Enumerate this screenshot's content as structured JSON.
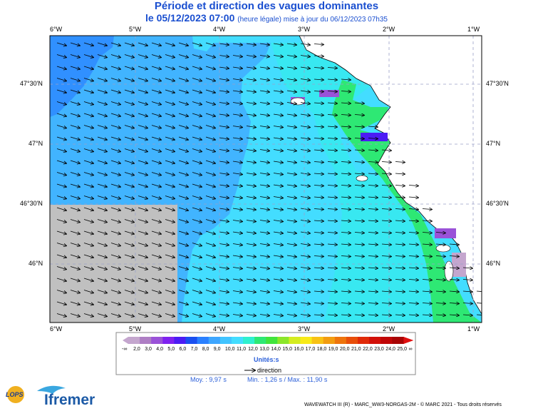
{
  "header": {
    "title": "Période et direction des vagues dominantes",
    "date_main": "le 05/12/2023 07:00",
    "date_sub": "(heure légale) mise à jour du 06/12/2023 07h35"
  },
  "axes": {
    "lon_labels": [
      "6°W",
      "5°W",
      "4°W",
      "3°W",
      "2°W",
      "1°W"
    ],
    "lat_labels": [
      "47°30'N",
      "47°N",
      "46°30'N",
      "46°N"
    ]
  },
  "legend": {
    "ticks": [
      "-∞",
      "2,0",
      "3,0",
      "4,0",
      "5,0",
      "6,0",
      "7,0",
      "8,0",
      "9,0",
      "10,0",
      "11,0",
      "12,0",
      "13,0",
      "14,0",
      "15,0",
      "16,0",
      "17,0",
      "18,0",
      "19,0",
      "20,0",
      "21,0",
      "22,0",
      "23,0",
      "24,0",
      "25,0",
      "∞"
    ],
    "colors": [
      "#c4a6ce",
      "#ae7ec4",
      "#9a52d8",
      "#7f22f0",
      "#4c1cf4",
      "#1a4ff0",
      "#2a80ff",
      "#3ea6ff",
      "#41c4ff",
      "#43ddff",
      "#2ff0cf",
      "#2ee874",
      "#41e43c",
      "#8ce62a",
      "#d4ec20",
      "#f8ea18",
      "#f8c214",
      "#f29c10",
      "#ee740c",
      "#e84e0a",
      "#e02a08",
      "#d21008",
      "#c00606",
      "#a80404",
      "#e01010"
    ],
    "unit": "Unités:s",
    "direction_label": "direction"
  },
  "stats": {
    "moy": "Moy. : 9,97 s",
    "min_max": "Min. : 1,26 s / Max. : 11,90 s"
  },
  "footer": {
    "credit": "WAVEWATCH III (R) - MARC_WW3-NORGAS-2M - © MARC 2021 - Tous droits réservés",
    "logo_lops": "LOPS",
    "logo_ifremer": "Ifremer"
  },
  "map_colors": {
    "deep_blue": "#3090ff",
    "mid_blue": "#41b4ff",
    "light_blue": "#43ddff",
    "cyan": "#2ff0e6",
    "green": "#2ee874",
    "purple": "#9a52d8",
    "violet": "#4c1cf4",
    "land": "#ffffff",
    "no_data": "#c0c0c0"
  }
}
